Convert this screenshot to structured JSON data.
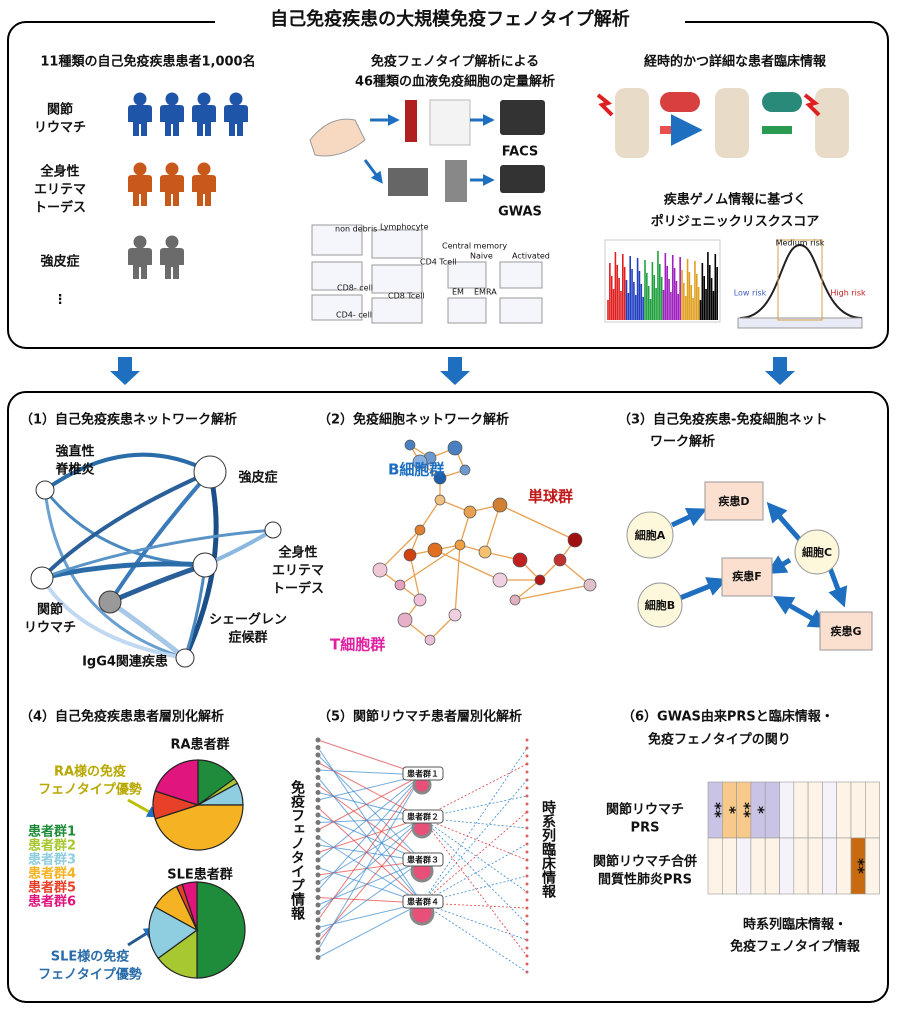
{
  "header": {
    "title": "自己免疫疾患の大規模免疫フェノタイプ解析"
  },
  "top": {
    "cohort": {
      "title": "11種類の自己免疫疾患患者1,000名",
      "groups": [
        [
          "関節",
          "リウマチ"
        ],
        [
          "全身性",
          "エリテマ",
          "トーデス"
        ],
        [
          "強皮症"
        ],
        [
          "⋮"
        ]
      ]
    },
    "phenotyping": {
      "title": [
        "免疫フェノタイプ解析による",
        "46種類の血液免疫細胞の定量解析"
      ],
      "facs": "FACS",
      "gwas": "GWAS",
      "gating": [
        "non debris",
        "Lymphocyte",
        "CD4 Tcell",
        "Central memory",
        "Naive",
        "Activated",
        "CD8- cell",
        "CD4- cell",
        "CD8 Tcell",
        "EM",
        "EMRA"
      ]
    },
    "clinical": {
      "title": "経時的かつ詳細な患者臨床情報",
      "prs_title": [
        "疾患ゲノム情報に基づく",
        "ポリジェニックリスクスコア"
      ],
      "risk_labels": [
        "Medium risk",
        "Low risk",
        "High risk"
      ]
    }
  },
  "panels": {
    "p1": {
      "title": "（1）自己免疫疾患ネットワーク解析",
      "nodes": [
        [
          "強直性",
          "脊椎炎"
        ],
        [
          "強皮症"
        ],
        [
          "全身性",
          "エリテマ",
          "トーデス"
        ],
        [
          "関節",
          "リウマチ"
        ],
        [
          "シェーグレン",
          "症候群"
        ],
        [
          "IgG4関連疾患"
        ]
      ]
    },
    "p2": {
      "title": "（2）免疫細胞ネットワーク解析",
      "groups": [
        "B細胞群",
        "単球群",
        "T細胞群"
      ]
    },
    "p3": {
      "title": [
        "（3）自己免疫疾患-免疫細胞ネット",
        "ワーク解析"
      ],
      "diseases": [
        "疾患D",
        "疾患F",
        "疾患G"
      ],
      "cells": [
        "細胞A",
        "細胞C",
        "細胞B"
      ]
    },
    "p4": {
      "title": "（4）自己免疫疾患患者層別化解析",
      "legend": [
        {
          "name": "患者群1",
          "color": "#1e8c3a"
        },
        {
          "name": "患者群2",
          "color": "#a8c832"
        },
        {
          "name": "患者群3",
          "color": "#8fcde0"
        },
        {
          "name": "患者群4",
          "color": "#f5b323"
        },
        {
          "name": "患者群5",
          "color": "#e8412a"
        },
        {
          "name": "患者群6",
          "color": "#e0157d"
        }
      ],
      "pies": [
        {
          "title": "RA患者群",
          "values": [
            15,
            2,
            8,
            45,
            10,
            20
          ],
          "annotation": [
            "RA様の免疫",
            "フェノタイプ優勢"
          ]
        },
        {
          "title": "SLE患者群",
          "values": [
            50,
            15,
            18,
            10,
            2,
            5
          ],
          "annotation": [
            "SLE様の免疫",
            "フェノタイプ優勢"
          ]
        }
      ]
    },
    "p5": {
      "title": "（5）関節リウマチ患者層別化解析",
      "left_axis": "免疫フェノタイプ情報",
      "right_axis": "時系列臨床情報",
      "clusters": [
        "患者群１",
        "患者群２",
        "患者群３",
        "患者群４"
      ]
    },
    "p6": {
      "title": [
        "（6）GWAS由来PRSと臨床情報・",
        "免疫フェノタイプの関り"
      ],
      "rows": [
        {
          "label": [
            "関節リウマチ",
            "PRS"
          ],
          "stars": [
            "**",
            "*",
            "**",
            "*",
            null,
            null,
            null,
            null,
            null,
            null,
            null,
            null
          ],
          "colors": [
            "#c9c3e6",
            "#f7c98a",
            "#f7c98a",
            "#c9c3e6",
            "#c9c3e6",
            "#f5f2fa",
            "#fdf3e6",
            "#fdf3e6",
            "#f5f2fa",
            "#fdf3e6",
            "#fdf3e6",
            "#fdf3e6"
          ]
        },
        {
          "label": [
            "関節リウマチ合併",
            "間質性肺炎PRS"
          ],
          "stars": [
            null,
            null,
            null,
            null,
            null,
            null,
            null,
            null,
            null,
            null,
            "**",
            null
          ],
          "colors": [
            "#fdf3e6",
            "#fdf3e6",
            "#f5f2fa",
            "#fdf3e6",
            "#fdf3e6",
            "#f5f2fa",
            "#fdf3e6",
            "#fdf3e6",
            "#f5f2fa",
            "#fdf3e6",
            "#c86a10",
            "#fdf3e6"
          ]
        }
      ],
      "caption": [
        "時系列臨床情報・",
        "免疫フェノタイプ情報"
      ]
    }
  }
}
